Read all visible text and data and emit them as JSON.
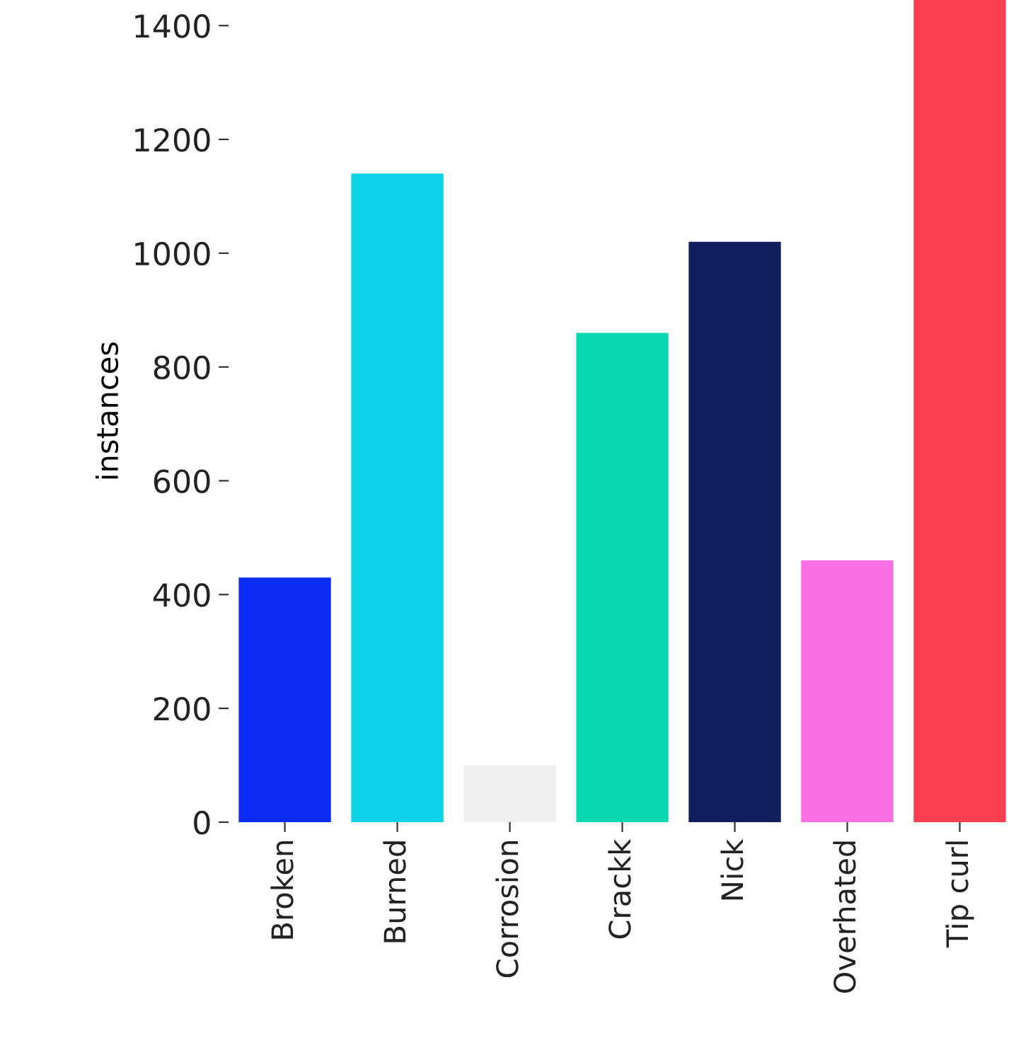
{
  "chart_data": {
    "type": "bar",
    "ylabel": "instances",
    "categories": [
      "Broken",
      "Burned",
      "Corrosion",
      "Crackk",
      "Nick",
      "Overhated",
      "Tip curl"
    ],
    "values": [
      430,
      1140,
      100,
      860,
      1020,
      460,
      1445
    ],
    "colors": [
      "#0a2cf5",
      "#0ed3e8",
      "#efefef",
      "#0ad9b0",
      "#121f5e",
      "#f96ee0",
      "#f93e50"
    ],
    "ylim": [
      0,
      1445
    ],
    "yticks": [
      0,
      200,
      400,
      600,
      800,
      1000,
      1200,
      1400
    ],
    "grid": false
  }
}
